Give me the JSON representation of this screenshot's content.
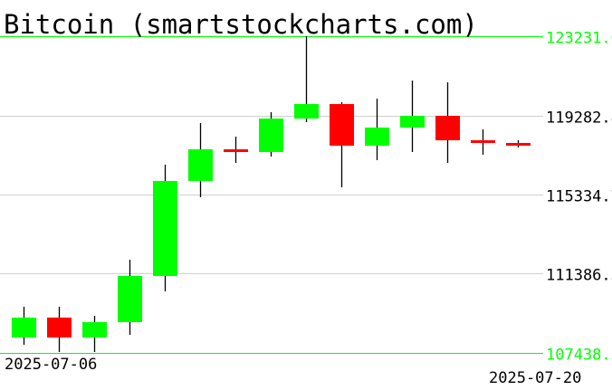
{
  "chart_data": {
    "type": "candlestick",
    "title": "Bitcoin  (smartstockcharts.com)",
    "ylim": [
      107438.3,
      123231.0
    ],
    "yticks": [
      "123231.0",
      "119282.8",
      "115334.7",
      "111386.5",
      "107438.3"
    ],
    "ytick_values": [
      123231.0,
      119282.8,
      115334.7,
      111386.5,
      107438.3
    ],
    "xtick_labels": [
      "2025-07-06",
      "2025-07-20"
    ],
    "grid": true,
    "colors": {
      "up": "#00ff00",
      "down": "#ff0000",
      "grid": "#d0d0d0",
      "boundary": "#00ff00",
      "wick": "#000000"
    },
    "dates": [
      "2025-07-06",
      "2025-07-07",
      "2025-07-08",
      "2025-07-09",
      "2025-07-10",
      "2025-07-11",
      "2025-07-12",
      "2025-07-13",
      "2025-07-14",
      "2025-07-15",
      "2025-07-16",
      "2025-07-17",
      "2025-07-18",
      "2025-07-19",
      "2025-07-20"
    ],
    "candles": [
      {
        "open": 108206,
        "high": 109740,
        "low": 107845,
        "close": 109199
      },
      {
        "open": 109199,
        "high": 109740,
        "low": 107484,
        "close": 108206
      },
      {
        "open": 108206,
        "high": 109289,
        "low": 107484,
        "close": 108973
      },
      {
        "open": 108973,
        "high": 112086,
        "low": 108341,
        "close": 111274
      },
      {
        "open": 111274,
        "high": 116824,
        "low": 110507,
        "close": 116012
      },
      {
        "open": 116012,
        "high": 118899,
        "low": 115200,
        "close": 117591
      },
      {
        "open": 117591,
        "high": 118223,
        "low": 116914,
        "close": 117456
      },
      {
        "open": 117456,
        "high": 119441,
        "low": 117230,
        "close": 119125
      },
      {
        "open": 119125,
        "high": 123231,
        "low": 118945,
        "close": 119847
      },
      {
        "open": 119847,
        "high": 119937,
        "low": 115696,
        "close": 117772
      },
      {
        "open": 117772,
        "high": 120118,
        "low": 117050,
        "close": 118674
      },
      {
        "open": 118674,
        "high": 121020,
        "low": 117456,
        "close": 119261
      },
      {
        "open": 119261,
        "high": 120930,
        "low": 116914,
        "close": 118042
      },
      {
        "open": 118042,
        "high": 118584,
        "low": 117321,
        "close": 117907
      },
      {
        "open": 117907,
        "high": 118042,
        "low": 117681,
        "close": 117772
      }
    ]
  }
}
